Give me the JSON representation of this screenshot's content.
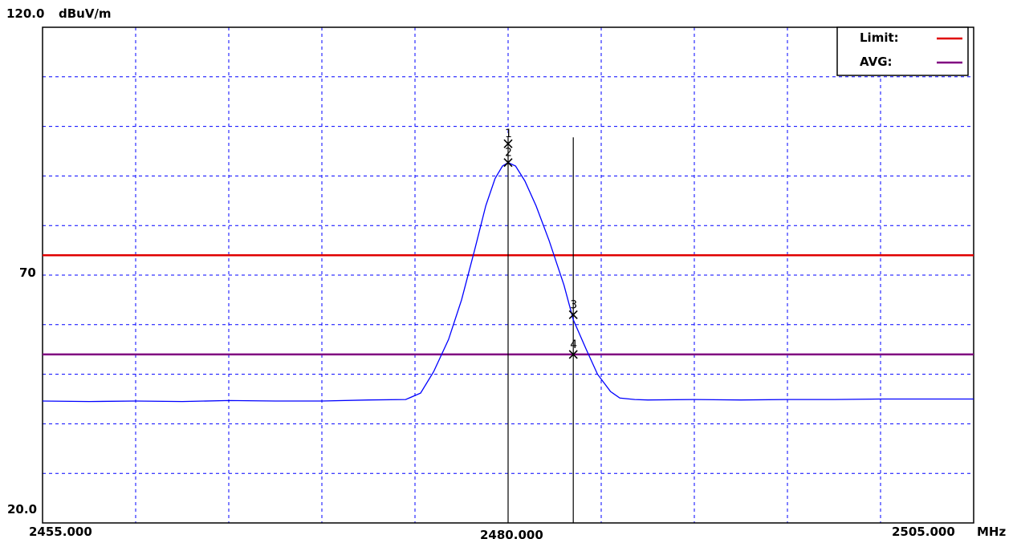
{
  "chart_data": {
    "type": "line",
    "x_unit": "MHz",
    "y_unit": "dBuV/m",
    "xlim": [
      2455.0,
      2505.0
    ],
    "ylim": [
      20.0,
      120.0
    ],
    "x_tick_labels": [
      "2455.000",
      "2480.000",
      "2505.000"
    ],
    "y_tick_labels": [
      "120.0",
      "70",
      "20.0"
    ],
    "grid": true,
    "grid_x_divisions": 10,
    "grid_y_divisions": 10,
    "legend_position": "top-right",
    "legend": [
      {
        "name": "Limit:",
        "color": "#e00000"
      },
      {
        "name": "AVG:",
        "color": "#800080"
      }
    ],
    "limit_lines": [
      {
        "name": "Limit",
        "value": 74.0,
        "color": "#e00000"
      },
      {
        "name": "AVG",
        "value": 54.0,
        "color": "#800080"
      }
    ],
    "trace": {
      "color": "#0000ff",
      "x": [
        2455.0,
        2457.5,
        2460.0,
        2462.5,
        2465.0,
        2467.5,
        2470.0,
        2472.5,
        2474.5,
        2475.3,
        2476.0,
        2476.8,
        2477.5,
        2478.2,
        2478.8,
        2479.3,
        2479.7,
        2480.0,
        2480.4,
        2480.9,
        2481.5,
        2482.2,
        2483.0,
        2483.5,
        2484.2,
        2484.8,
        2485.5,
        2486.0,
        2486.8,
        2487.5,
        2490.0,
        2492.5,
        2495.0,
        2497.5,
        2500.0,
        2502.5,
        2505.0
      ],
      "y": [
        44.6,
        44.5,
        44.6,
        44.5,
        44.7,
        44.6,
        44.6,
        44.8,
        44.9,
        46.2,
        50.5,
        57.0,
        65.0,
        75.0,
        84.0,
        89.5,
        92.0,
        92.7,
        92.0,
        89.0,
        84.0,
        77.0,
        68.0,
        61.0,
        55.0,
        50.0,
        46.5,
        45.2,
        44.9,
        44.8,
        44.9,
        44.8,
        44.9,
        44.9,
        45.0,
        45.0,
        45.0
      ]
    },
    "markers": [
      {
        "label": "1",
        "x": 2480.0,
        "y": 96.5
      },
      {
        "label": "2",
        "x": 2480.0,
        "y": 92.7
      },
      {
        "label": "3",
        "x": 2483.5,
        "y": 62.0
      },
      {
        "label": "4",
        "x": 2483.5,
        "y": 54.0
      }
    ],
    "marker_lines_x": [
      2480.0,
      2483.5
    ]
  }
}
